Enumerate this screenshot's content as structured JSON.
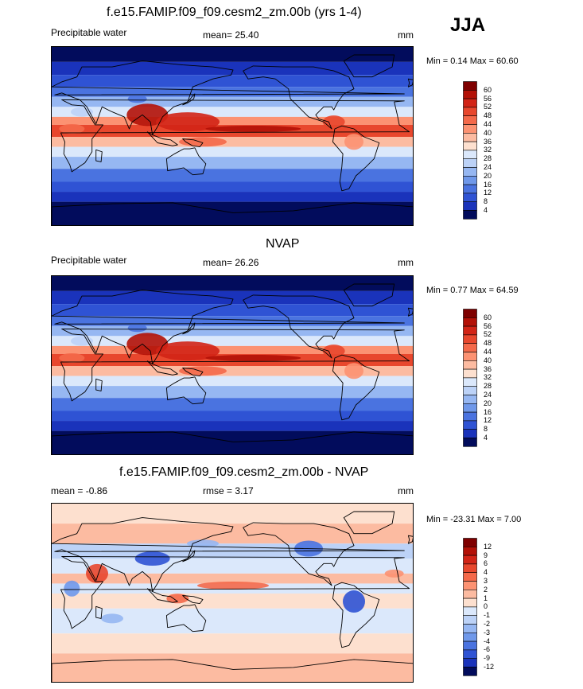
{
  "season": "JJA",
  "colors": {
    "warm": [
      "#fde0cf",
      "#fcbba1",
      "#fc9272",
      "#f4694a",
      "#e8472d",
      "#d22416",
      "#b31107",
      "#7f0000"
    ],
    "cool": [
      "#dbe8fb",
      "#bcd2f7",
      "#96b7f2",
      "#6f98ea",
      "#4a73e0",
      "#2f53d4",
      "#1a33bb",
      "#0c1a8c",
      "#020c5c"
    ]
  },
  "panels": [
    {
      "title": "f.e15.FAMIP.f09_f09.cesm2_zm.00b (yrs 1-4)",
      "left": "Precipitable water",
      "center": "mean=  25.40",
      "right": "mm",
      "minmax": "Min =   0.14 Max =  60.60"
    },
    {
      "title": "NVAP",
      "left": "Precipitable water",
      "center": "mean=  26.26",
      "right": "mm",
      "minmax": "Min =   0.77 Max =  64.59"
    },
    {
      "title": "f.e15.FAMIP.f09_f09.cesm2_zm.00b - NVAP",
      "left": "mean =  -0.86",
      "center": "rmse =   3.17",
      "right": "mm",
      "minmax": "Min = -23.31 Max =   7.00"
    }
  ],
  "chart_data": [
    {
      "type": "heatmap",
      "title": "f.e15.FAMIP.f09_f09.cesm2_zm.00b (yrs 1-4)",
      "field": "Precipitable water",
      "units": "mm",
      "mean": 25.4,
      "min": 0.14,
      "max": 60.6,
      "colorbar_levels": [
        60,
        56,
        52,
        48,
        44,
        40,
        36,
        32,
        28,
        24,
        20,
        16,
        12,
        8,
        4
      ]
    },
    {
      "type": "heatmap",
      "title": "NVAP",
      "field": "Precipitable water",
      "units": "mm",
      "mean": 26.26,
      "min": 0.77,
      "max": 64.59,
      "colorbar_levels": [
        60,
        56,
        52,
        48,
        44,
        40,
        36,
        32,
        28,
        24,
        20,
        16,
        12,
        8,
        4
      ]
    },
    {
      "type": "heatmap",
      "title": "f.e15.FAMIP.f09_f09.cesm2_zm.00b - NVAP",
      "units": "mm",
      "mean": -0.86,
      "rmse": 3.17,
      "min": -23.31,
      "max": 7.0,
      "colorbar_levels": [
        12,
        9,
        6,
        4,
        3,
        2,
        1,
        0,
        -1,
        -2,
        -3,
        -4,
        -6,
        -9,
        -12
      ]
    }
  ]
}
